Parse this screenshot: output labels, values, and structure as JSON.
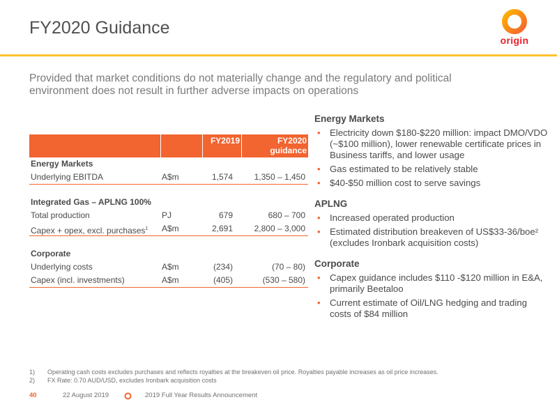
{
  "slide": {
    "title": "FY2020 Guidance",
    "subtitle": "Provided that market conditions do not materially change and the regulatory and political environment does not result in further adverse impacts on operations",
    "logo_text": "origin",
    "colors": {
      "accent": "#f26430",
      "rule": "#ffc22d",
      "brand_red": "#e8202a"
    }
  },
  "table": {
    "col_fy2019": "FY2019",
    "col_fy2020": "FY2020 guidance",
    "sections": [
      {
        "heading": "Energy Markets",
        "rows": [
          {
            "label": "Underlying EBITDA",
            "unit": "A$m",
            "fy2019": "1,574",
            "fy2020": "1,350 – 1,450"
          }
        ]
      },
      {
        "heading": "Integrated Gas – APLNG 100%",
        "rows": [
          {
            "label": "Total production",
            "unit": "PJ",
            "fy2019": "679",
            "fy2020": "680 – 700"
          },
          {
            "label": "Capex + opex, excl. purchases",
            "footnote_mark": "1",
            "unit": "A$m",
            "fy2019": "2,691",
            "fy2020": "2,800 – 3,000"
          }
        ]
      },
      {
        "heading": "Corporate",
        "rows": [
          {
            "label": "Underlying costs",
            "unit": "A$m",
            "fy2019": "(234)",
            "fy2020": "(70 – 80)"
          },
          {
            "label": "Capex (incl. investments)",
            "unit": "A$m",
            "fy2019": "(405)",
            "fy2020": "(530 – 580)"
          }
        ]
      }
    ]
  },
  "commentary": {
    "energy_markets": {
      "heading": "Energy Markets",
      "bullets": [
        "Electricity down $180-$220 million: impact DMO/VDO (~$100 million), lower renewable certificate prices in Business tariffs, and lower usage",
        "Gas estimated to be relatively stable",
        "$40-$50 million cost to serve savings"
      ]
    },
    "aplng": {
      "heading": "APLNG",
      "bullets": [
        "Increased operated production",
        "Estimated distribution breakeven of US$33-36/boe² (excludes Ironbark acquisition costs)"
      ]
    },
    "corporate": {
      "heading": "Corporate",
      "bullets": [
        "Capex guidance includes $110 -$120 million in E&A, primarily Beetaloo",
        "Current estimate of Oil/LNG hedging and trading costs of $84 million"
      ]
    }
  },
  "footnotes": [
    {
      "number": "1)",
      "text": "Operating cash costs excludes purchases and reflects royalties at the breakeven oil price. Royalties payable increases as oil price increases."
    },
    {
      "number": "2)",
      "text": "FX Rate: 0.70 AUD/USD, excludes Ironbark acquisition costs"
    }
  ],
  "footer": {
    "page_number": "40",
    "date": "22 August 2019",
    "presentation": "2019 Full Year Results Announcement"
  }
}
